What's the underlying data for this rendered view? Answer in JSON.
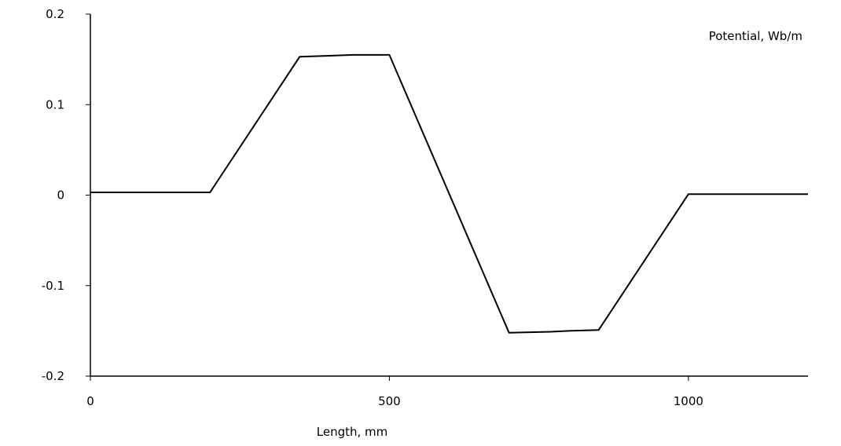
{
  "chart_data": {
    "type": "line",
    "xlabel": "Length, mm",
    "ylabel": "",
    "xlim": [
      0,
      1200
    ],
    "ylim": [
      -0.2,
      0.2
    ],
    "x_ticks": [
      0,
      500,
      1000
    ],
    "x_tick_labels": [
      "0",
      "500",
      "1000"
    ],
    "y_ticks": [
      0.2,
      0.1,
      0,
      -0.1,
      -0.2
    ],
    "y_tick_labels": [
      "0.2",
      "0.1",
      "0",
      "-0.1",
      "-0.2"
    ],
    "grid": false,
    "legend_position": "top-right",
    "series": [
      {
        "name": "Potential, Wb/m",
        "color": "#000000",
        "x": [
          0,
          200,
          350,
          400,
          440,
          500,
          700,
          770,
          800,
          850,
          1000,
          1200
        ],
        "y": [
          0.003,
          0.003,
          0.153,
          0.154,
          0.155,
          0.155,
          -0.152,
          -0.151,
          -0.15,
          -0.149,
          0.001,
          0.001
        ]
      }
    ]
  }
}
